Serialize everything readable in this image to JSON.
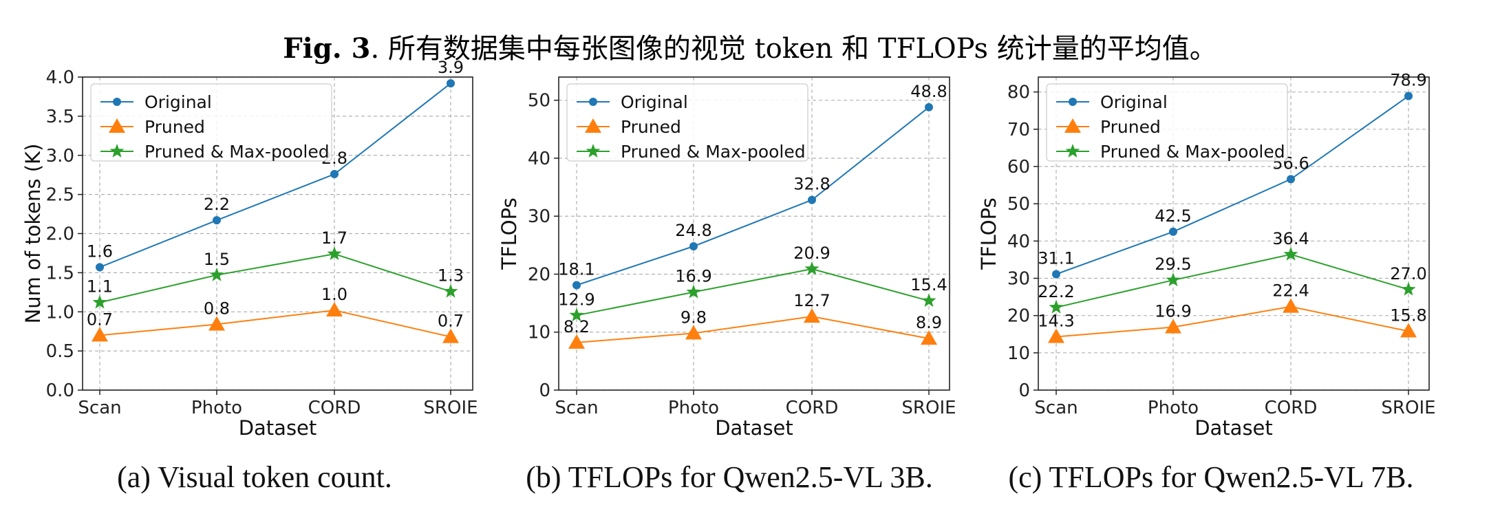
{
  "figure": {
    "title_prefix": "Fig. 3",
    "title_text": ". 所有数据集中每张图像的视觉 token 和 TFLOPs 统计量的平均值。"
  },
  "colors": {
    "original": "#1f77b4",
    "pruned": "#ff7f0e",
    "maxpooled": "#2ca02c",
    "grid": "#b0b0b0"
  },
  "chart_data": [
    {
      "type": "line",
      "caption": "(a) Visual token count.",
      "xlabel": "Dataset",
      "ylabel": "Num of tokens (K)",
      "categories": [
        "Scan",
        "Photo",
        "CORD",
        "SROIE"
      ],
      "ylim": [
        0,
        4.0
      ],
      "yticks": [
        0.0,
        0.5,
        1.0,
        1.5,
        2.0,
        2.5,
        3.0,
        3.5,
        4.0
      ],
      "ytick_labels": [
        "0.0",
        "0.5",
        "1.0",
        "1.5",
        "2.0",
        "2.5",
        "3.0",
        "3.5",
        "4.0"
      ],
      "grid": true,
      "legend": "top-left",
      "series": [
        {
          "name": "Original",
          "marker": "circle",
          "values": [
            1.57,
            2.17,
            2.76,
            3.92
          ],
          "labels": [
            "1.6",
            "2.2",
            "2.8",
            "3.9"
          ]
        },
        {
          "name": "Pruned",
          "marker": "triangle",
          "values": [
            0.7,
            0.84,
            1.02,
            0.68
          ],
          "labels": [
            "0.7",
            "0.8",
            "1.0",
            "0.7"
          ]
        },
        {
          "name": "Pruned & Max-pooled",
          "marker": "star",
          "values": [
            1.12,
            1.47,
            1.74,
            1.26
          ],
          "labels": [
            "1.1",
            "1.5",
            "1.7",
            "1.3"
          ]
        }
      ]
    },
    {
      "type": "line",
      "caption": "(b) TFLOPs for Qwen2.5-VL 3B.",
      "xlabel": "Dataset",
      "ylabel": "TFLOPs",
      "categories": [
        "Scan",
        "Photo",
        "CORD",
        "SROIE"
      ],
      "ylim": [
        0,
        54
      ],
      "yticks": [
        0,
        10,
        20,
        30,
        40,
        50
      ],
      "ytick_labels": [
        "0",
        "10",
        "20",
        "30",
        "40",
        "50"
      ],
      "grid": true,
      "legend": "top-left",
      "series": [
        {
          "name": "Original",
          "marker": "circle",
          "values": [
            18.1,
            24.8,
            32.8,
            48.8
          ],
          "labels": [
            "18.1",
            "24.8",
            "32.8",
            "48.8"
          ]
        },
        {
          "name": "Pruned",
          "marker": "triangle",
          "values": [
            8.2,
            9.8,
            12.7,
            8.9
          ],
          "labels": [
            "8.2",
            "9.8",
            "12.7",
            "8.9"
          ]
        },
        {
          "name": "Pruned & Max-pooled",
          "marker": "star",
          "values": [
            12.9,
            16.9,
            20.9,
            15.4
          ],
          "labels": [
            "12.9",
            "16.9",
            "20.9",
            "15.4"
          ]
        }
      ]
    },
    {
      "type": "line",
      "caption": "(c) TFLOPs for Qwen2.5-VL 7B.",
      "xlabel": "Dataset",
      "ylabel": "TFLOPs",
      "categories": [
        "Scan",
        "Photo",
        "CORD",
        "SROIE"
      ],
      "ylim": [
        0,
        84
      ],
      "yticks": [
        0,
        10,
        20,
        30,
        40,
        50,
        60,
        70,
        80
      ],
      "ytick_labels": [
        "0",
        "10",
        "20",
        "30",
        "40",
        "50",
        "60",
        "70",
        "80"
      ],
      "grid": true,
      "legend": "top-left",
      "series": [
        {
          "name": "Original",
          "marker": "circle",
          "values": [
            31.1,
            42.5,
            56.6,
            78.9
          ],
          "labels": [
            "31.1",
            "42.5",
            "56.6",
            "78.9"
          ]
        },
        {
          "name": "Pruned",
          "marker": "triangle",
          "values": [
            14.3,
            16.9,
            22.4,
            15.8
          ],
          "labels": [
            "14.3",
            "16.9",
            "22.4",
            "15.8"
          ]
        },
        {
          "name": "Pruned & Max-pooled",
          "marker": "star",
          "values": [
            22.2,
            29.5,
            36.4,
            27.0
          ],
          "labels": [
            "22.2",
            "29.5",
            "36.4",
            "27.0"
          ]
        }
      ]
    }
  ]
}
